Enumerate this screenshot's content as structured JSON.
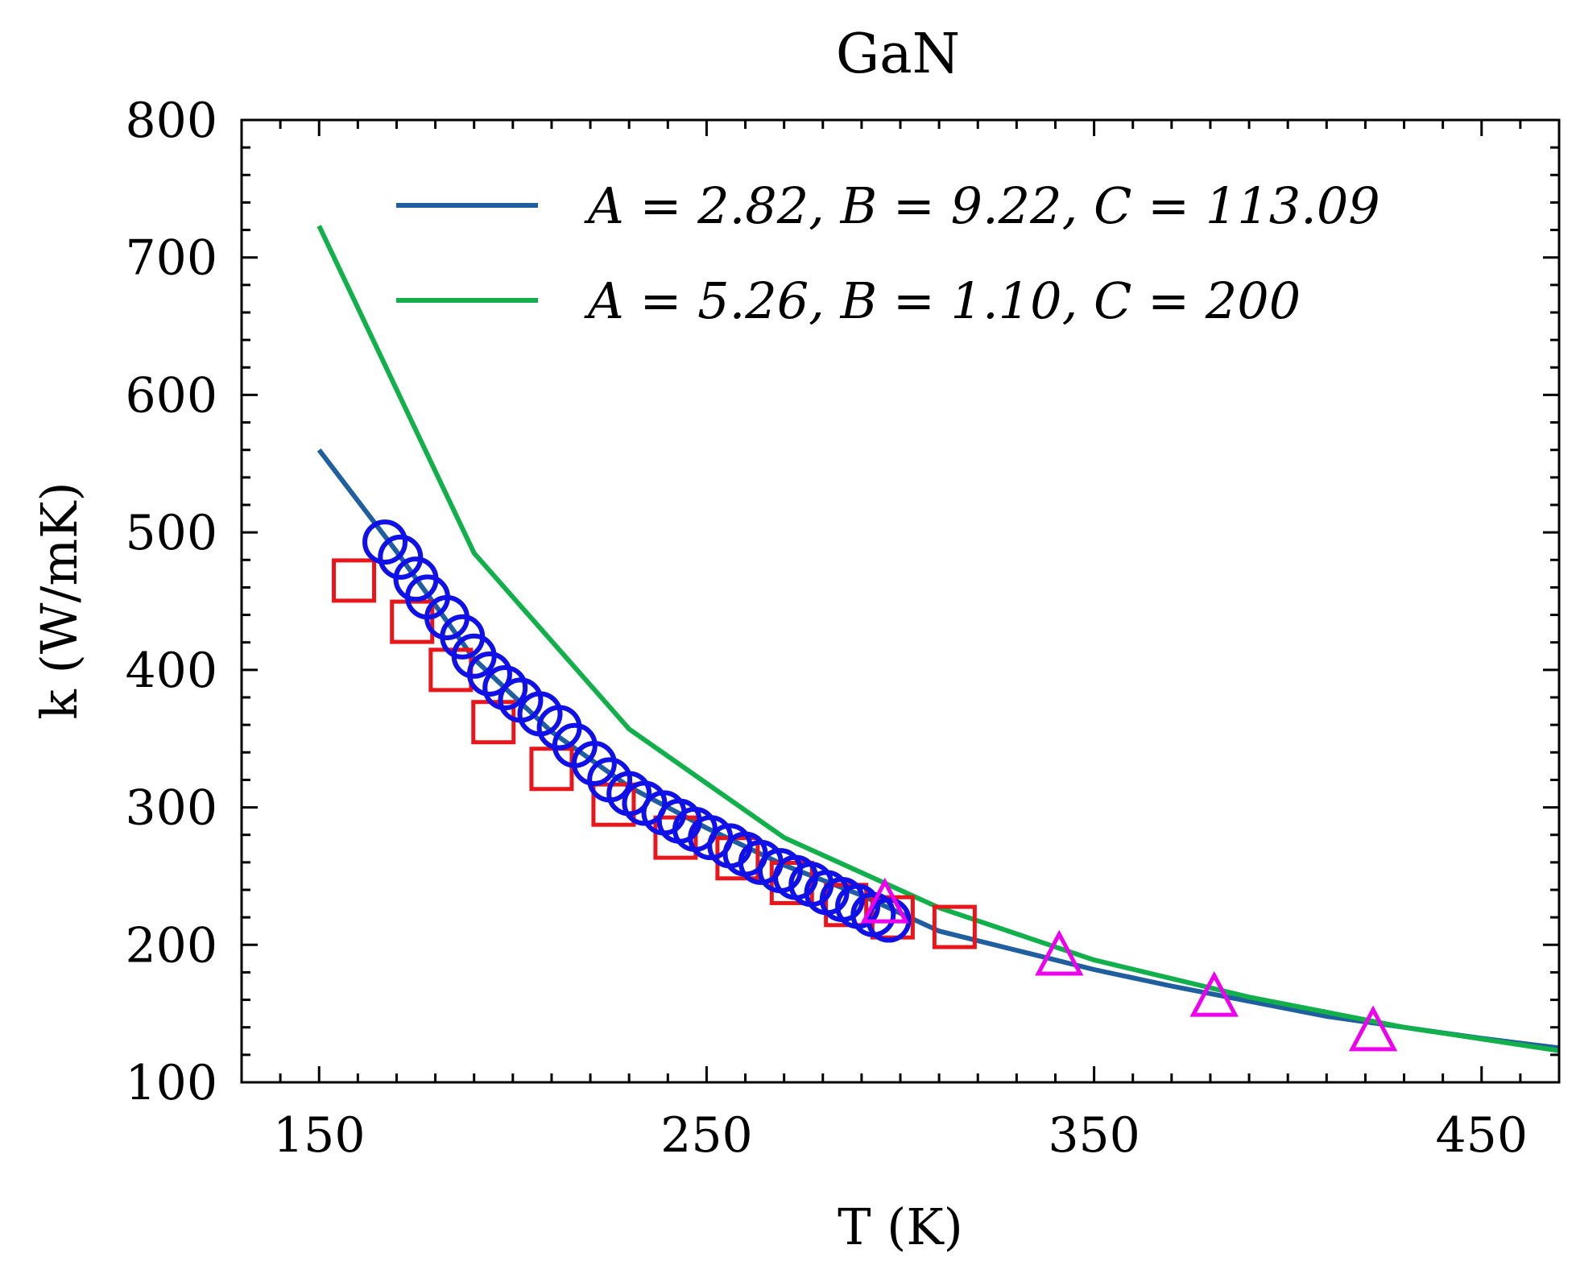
{
  "chart_data": {
    "type": "scatter",
    "title": "GaN",
    "xlabel": "T (K)",
    "ylabel": "k (W/mK)",
    "xlim": [
      130,
      470
    ],
    "ylim": [
      100,
      800
    ],
    "xticks": [
      150,
      250,
      350,
      450
    ],
    "yticks": [
      100,
      200,
      300,
      400,
      500,
      600,
      700,
      800
    ],
    "x_tick_labels": [
      "150",
      "250",
      "350",
      "450"
    ],
    "y_tick_labels": [
      "100",
      "200",
      "300",
      "400",
      "500",
      "600",
      "700",
      "800"
    ],
    "grid": false,
    "legend_position": "top-right",
    "lines": [
      {
        "name": "A = 2.82, B = 9.22, C = 113.09",
        "color": "#1f5fa0",
        "x": [
          150,
          170,
          190,
          210,
          230,
          250,
          270,
          290,
          310,
          330,
          350,
          370,
          390,
          410,
          430,
          450,
          470
        ],
        "y": [
          560,
          486,
          408,
          355,
          315,
          285,
          258,
          236,
          210,
          196,
          182,
          170,
          159,
          148,
          140,
          132,
          125
        ]
      },
      {
        "name": "A = 5.26, B = 1.10, C = 200",
        "color": "#12b04a",
        "x": [
          150,
          190,
          230,
          270,
          310,
          350,
          390,
          430,
          470
        ],
        "y": [
          723,
          485,
          357,
          278,
          227,
          189,
          162,
          140,
          123
        ]
      }
    ],
    "markers": [
      {
        "shape": "square",
        "color": "#e8161b",
        "x": [
          159,
          174,
          184,
          195,
          210,
          226,
          242,
          258,
          272,
          286,
          298,
          314
        ],
        "y": [
          465,
          435,
          400,
          362,
          328,
          302,
          278,
          263,
          245,
          229,
          220,
          213
        ]
      },
      {
        "shape": "circle",
        "color": "#1010e8",
        "x": [
          167,
          171,
          175,
          178,
          183,
          187,
          190,
          194,
          198,
          202,
          207,
          212,
          216,
          221,
          225,
          230,
          234,
          239,
          243,
          247,
          251,
          256,
          260,
          264,
          269,
          273,
          277,
          281,
          285,
          289,
          293,
          297
        ],
        "y": [
          493,
          482,
          466,
          453,
          438,
          424,
          410,
          397,
          387,
          378,
          368,
          358,
          345,
          332,
          320,
          310,
          303,
          296,
          290,
          284,
          278,
          272,
          266,
          260,
          254,
          249,
          244,
          238,
          233,
          228,
          222,
          218
        ]
      },
      {
        "shape": "triangle",
        "color": "#ee00ee",
        "x": [
          296,
          341,
          381,
          422
        ],
        "y": [
          230,
          192,
          162,
          137
        ]
      }
    ]
  }
}
